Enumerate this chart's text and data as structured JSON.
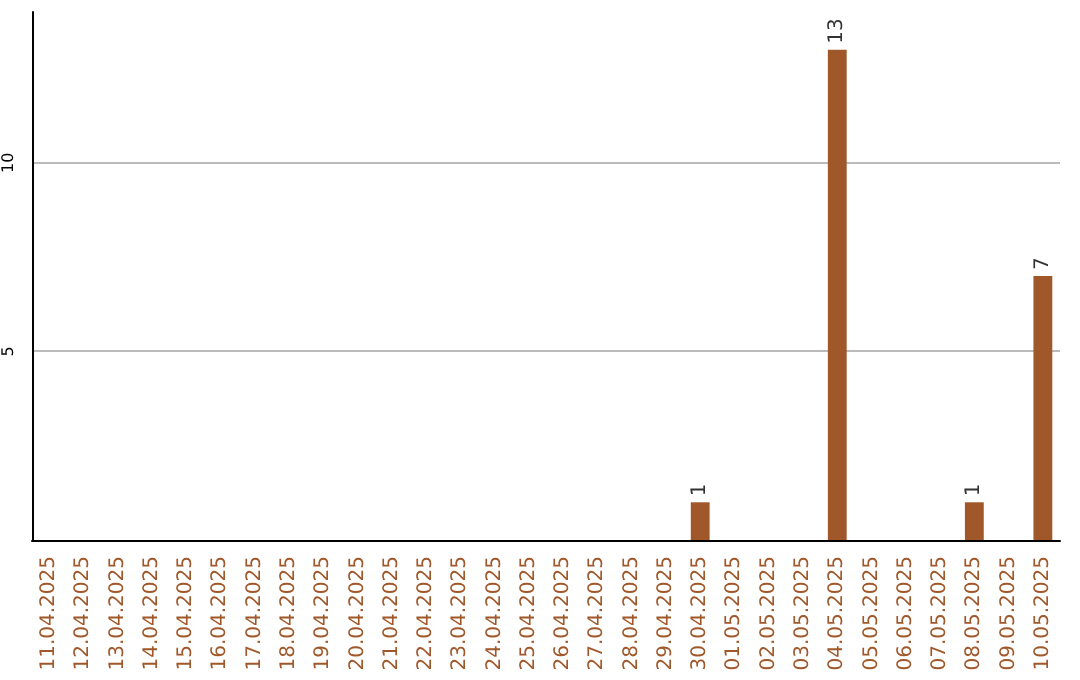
{
  "chart_data": {
    "type": "bar",
    "categories": [
      "11.04.2025",
      "12.04.2025",
      "13.04.2025",
      "14.04.2025",
      "15.04.2025",
      "16.04.2025",
      "17.04.2025",
      "18.04.2025",
      "19.04.2025",
      "20.04.2025",
      "21.04.2025",
      "22.04.2025",
      "23.04.2025",
      "24.04.2025",
      "25.04.2025",
      "26.04.2025",
      "27.04.2025",
      "28.04.2025",
      "29.04.2025",
      "30.04.2025",
      "01.05.2025",
      "02.05.2025",
      "03.05.2025",
      "04.05.2025",
      "05.05.2025",
      "06.05.2025",
      "07.05.2025",
      "08.05.2025",
      "09.05.2025",
      "10.05.2025"
    ],
    "values": [
      0,
      0,
      0,
      0,
      0,
      0,
      0,
      0,
      0,
      0,
      0,
      0,
      0,
      0,
      0,
      0,
      0,
      0,
      0,
      1,
      0,
      0,
      0,
      13,
      0,
      0,
      0,
      1,
      0,
      7
    ],
    "value_labels": [
      null,
      null,
      null,
      null,
      null,
      null,
      null,
      null,
      null,
      null,
      null,
      null,
      null,
      null,
      null,
      null,
      null,
      null,
      null,
      "1",
      null,
      null,
      null,
      "13",
      null,
      null,
      null,
      "1",
      null,
      "7"
    ],
    "color": "#a0582a",
    "ylim": [
      0,
      14
    ],
    "yticks": [
      5,
      10
    ],
    "grid": "y"
  }
}
